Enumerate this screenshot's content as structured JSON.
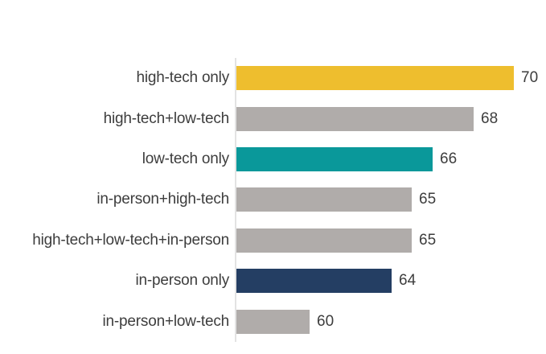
{
  "chart_data": {
    "type": "bar",
    "orientation": "horizontal",
    "title": "",
    "xlabel": "",
    "ylabel": "",
    "grid": false,
    "legend": false,
    "xlim": [
      56.4,
      71.4
    ],
    "categories": [
      "high-tech only",
      "high-tech+low-tech",
      "low-tech only",
      "in-person+high-tech",
      "high-tech+low-tech+in-person",
      "in-person only",
      "in-person+low-tech"
    ],
    "values": [
      70,
      68,
      66,
      65,
      65,
      64,
      60
    ],
    "data_labels": [
      "70",
      "68",
      "66",
      "65",
      "65",
      "64",
      "60"
    ],
    "bar_colors": [
      "#EEBE2E",
      "#B0ACAA",
      "#0A989A",
      "#B0ACAA",
      "#B0ACAA",
      "#243E63",
      "#B0ACAA"
    ],
    "colors": {
      "highlight_yellow": "#EEBE2E",
      "neutral_gray": "#B0ACAA",
      "highlight_teal": "#0A989A",
      "highlight_navy": "#243E63",
      "axis_line": "#E3E3E3",
      "text": "#3D3D3D"
    }
  }
}
